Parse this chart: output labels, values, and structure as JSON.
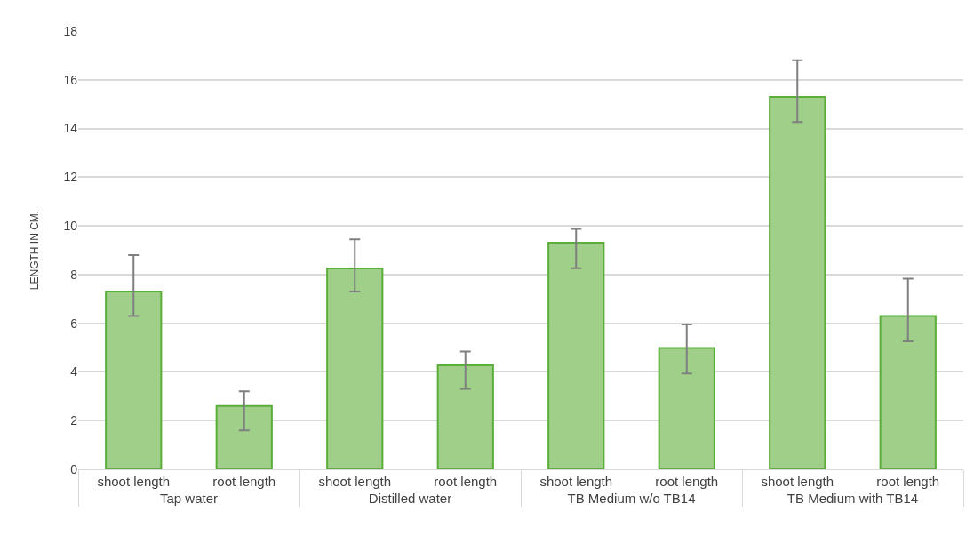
{
  "chart_data": {
    "type": "bar",
    "categories": [
      "shoot length",
      "root length",
      "shoot length",
      "root length",
      "shoot length",
      "root length",
      "shoot length",
      "root length"
    ],
    "values": [
      7.3,
      2.6,
      8.25,
      4.27,
      9.31,
      4.98,
      15.3,
      6.3
    ],
    "errors": [
      [
        6.3,
        8.8
      ],
      [
        1.6,
        3.2
      ],
      [
        7.3,
        9.45
      ],
      [
        3.3,
        4.84
      ],
      [
        8.26,
        9.88
      ],
      [
        3.93,
        5.95
      ],
      [
        14.27,
        16.8
      ],
      [
        5.26,
        7.83
      ]
    ],
    "color": "#9fcf88",
    "annotations": [
      "Tap water",
      "Distilled water",
      "TB Medium w/o TB14",
      "TB Medium with TB14"
    ],
    "ylabel": "LENGTH IN CM.",
    "ylim": [
      0,
      18
    ],
    "yticks": [
      0,
      2,
      4,
      6,
      8,
      10,
      12,
      14,
      16,
      18
    ],
    "grid": "y",
    "legend": false
  }
}
